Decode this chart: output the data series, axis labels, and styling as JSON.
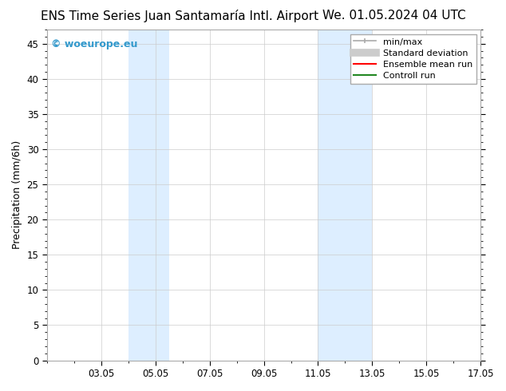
{
  "title_left": "ENS Time Series Juan Santamaría Intl. Airport",
  "title_right": "We. 01.05.2024 04 UTC",
  "ylabel": "Precipitation (mm/6h)",
  "ylim": [
    0,
    47
  ],
  "yticks": [
    0,
    5,
    10,
    15,
    20,
    25,
    30,
    35,
    40,
    45
  ],
  "xlim": [
    1.0,
    17.0
  ],
  "xtick_labels": [
    "03.05",
    "05.05",
    "07.05",
    "09.05",
    "11.05",
    "13.05",
    "15.05",
    "17.05"
  ],
  "xtick_positions": [
    3,
    5,
    7,
    9,
    11,
    13,
    15,
    17
  ],
  "shaded_bands": [
    {
      "x_start": 4.0,
      "x_end": 4.5
    },
    {
      "x_start": 4.5,
      "x_end": 5.5
    },
    {
      "x_start": 11.0,
      "x_end": 11.5
    },
    {
      "x_start": 11.5,
      "x_end": 13.0
    }
  ],
  "shaded_color": "#ddeeff",
  "background_color": "#ffffff",
  "grid_color": "#cccccc",
  "watermark_text": "© woeurope.eu",
  "watermark_color": "#3399cc",
  "title_fontsize": 11,
  "axis_fontsize": 9,
  "tick_fontsize": 8.5,
  "legend_fontsize": 8
}
